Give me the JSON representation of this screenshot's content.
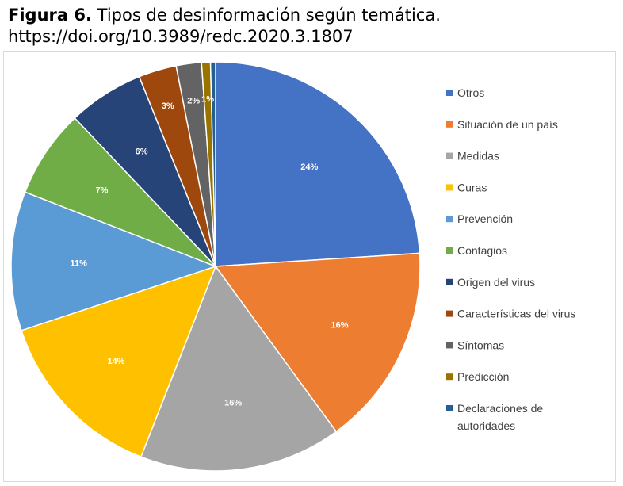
{
  "caption": {
    "label": "Figura 6.",
    "title": "Tipos de desinformación según temática.",
    "doi": "https://doi.org/10.3989/redc.2020.3.1807"
  },
  "chart_data": {
    "type": "pie",
    "title": "",
    "legend_position": "right",
    "slices": [
      {
        "name": "Otros",
        "value": 24,
        "label": "24%",
        "color": "#4472C4"
      },
      {
        "name": "Situación de un país",
        "value": 16,
        "label": "16%",
        "color": "#ED7D31"
      },
      {
        "name": "Medidas",
        "value": 16,
        "label": "16%",
        "color": "#A5A5A5"
      },
      {
        "name": "Curas",
        "value": 14,
        "label": "14%",
        "color": "#FFC000"
      },
      {
        "name": "Prevención",
        "value": 11,
        "label": "11%",
        "color": "#5B9BD5"
      },
      {
        "name": "Contagios",
        "value": 7,
        "label": "7%",
        "color": "#70AD47"
      },
      {
        "name": "Origen del virus",
        "value": 6,
        "label": "6%",
        "color": "#264478"
      },
      {
        "name": "Características del virus",
        "value": 3,
        "label": "3%",
        "color": "#9E480E"
      },
      {
        "name": "Síntomas",
        "value": 2,
        "label": "2%",
        "color": "#636363"
      },
      {
        "name": "Predicción",
        "value": 0.7,
        "label": "1%",
        "color": "#997300"
      },
      {
        "name": "Declaraciones de autoridades",
        "value": 0.4,
        "label": "",
        "color": "#255E91",
        "legend_lines": [
          "Declaraciones de",
          "autoridades"
        ]
      }
    ]
  }
}
